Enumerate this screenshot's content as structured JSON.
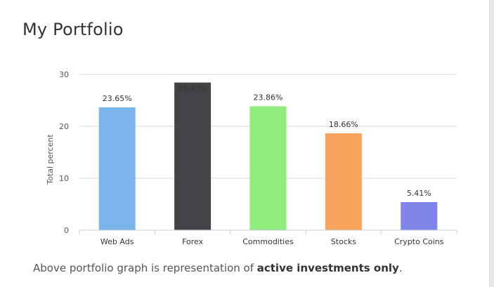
{
  "card": {
    "title": "My Portfolio"
  },
  "footer": {
    "text_before": "Above portfolio graph is representation of ",
    "text_bold": "active investments only",
    "text_after": "."
  },
  "chart_data": {
    "type": "bar",
    "title": "",
    "xlabel": "",
    "ylabel": "Total percent",
    "ylim": [
      0,
      30
    ],
    "yticks": [
      0,
      10,
      20,
      30
    ],
    "grid": true,
    "legend": "none",
    "categories": [
      "Web Ads",
      "Forex",
      "Commodities",
      "Stocks",
      "Crypto Coins"
    ],
    "values": [
      23.65,
      28.43,
      23.86,
      18.66,
      5.41
    ],
    "data_labels": [
      "23.65%",
      "28.43%",
      "23.86%",
      "18.66%",
      "5.41%"
    ],
    "colors": [
      "#7cb5ec",
      "#434348",
      "#90ed7d",
      "#f7a35c",
      "#8085e9"
    ],
    "gridline_color": "#d8d8d8",
    "axis_color": "#c0d0e0"
  }
}
